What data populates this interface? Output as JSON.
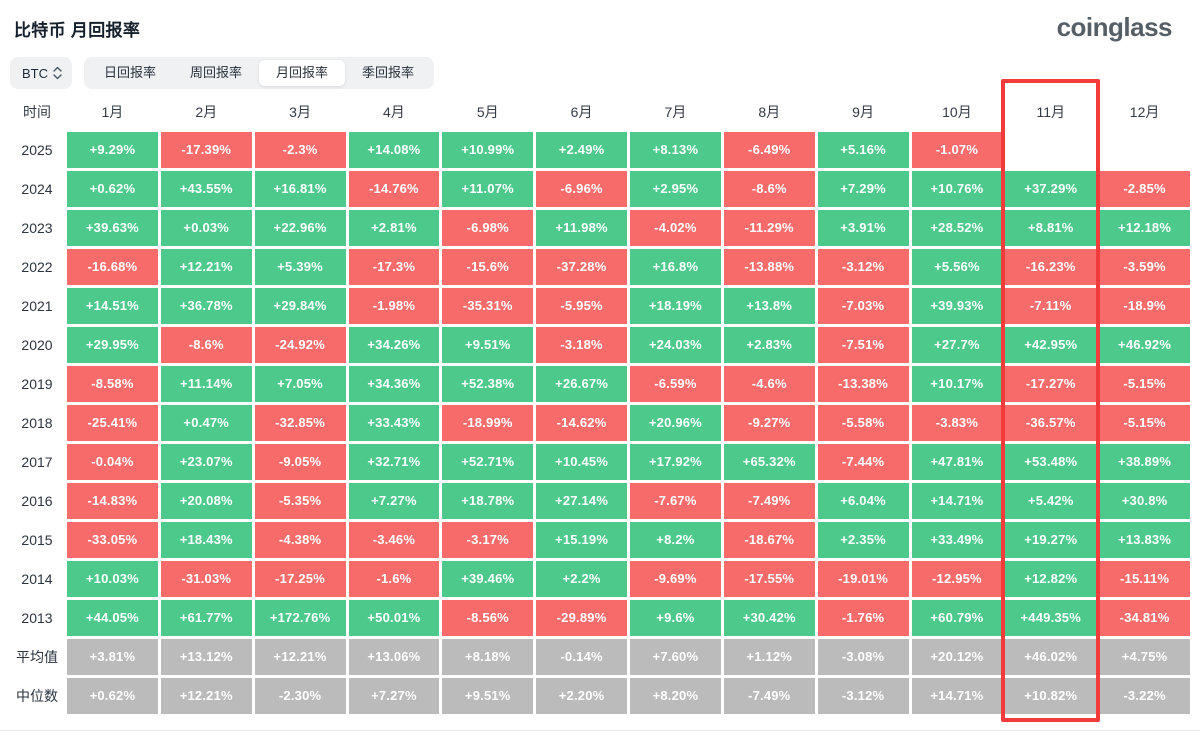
{
  "title": "比特币 月回报率",
  "logo": "coinglass",
  "controls": {
    "coin_selector": "BTC",
    "tabs": [
      {
        "label": "日回报率",
        "active": false
      },
      {
        "label": "周回报率",
        "active": false
      },
      {
        "label": "月回报率",
        "active": true
      },
      {
        "label": "季回报率",
        "active": false
      }
    ]
  },
  "colors": {
    "positive": "#4DC98C",
    "negative": "#F76C6B",
    "summary": "#BBBBBB",
    "highlight_border": "#F23B3B"
  },
  "chart_data": {
    "type": "heatmap",
    "title": "比特币 月回报率",
    "time_header": "时间",
    "columns": [
      "1月",
      "2月",
      "3月",
      "4月",
      "5月",
      "6月",
      "7月",
      "8月",
      "9月",
      "10月",
      "11月",
      "12月"
    ],
    "highlight_column": "11月",
    "highlight_column_index": 10,
    "rows": [
      {
        "label": "2025",
        "kind": "year",
        "values": [
          "+9.29%",
          "-17.39%",
          "-2.3%",
          "+14.08%",
          "+10.99%",
          "+2.49%",
          "+8.13%",
          "-6.49%",
          "+5.16%",
          "-1.07%",
          "",
          ""
        ]
      },
      {
        "label": "2024",
        "kind": "year",
        "values": [
          "+0.62%",
          "+43.55%",
          "+16.81%",
          "-14.76%",
          "+11.07%",
          "-6.96%",
          "+2.95%",
          "-8.6%",
          "+7.29%",
          "+10.76%",
          "+37.29%",
          "-2.85%"
        ]
      },
      {
        "label": "2023",
        "kind": "year",
        "values": [
          "+39.63%",
          "+0.03%",
          "+22.96%",
          "+2.81%",
          "-6.98%",
          "+11.98%",
          "-4.02%",
          "-11.29%",
          "+3.91%",
          "+28.52%",
          "+8.81%",
          "+12.18%"
        ]
      },
      {
        "label": "2022",
        "kind": "year",
        "values": [
          "-16.68%",
          "+12.21%",
          "+5.39%",
          "-17.3%",
          "-15.6%",
          "-37.28%",
          "+16.8%",
          "-13.88%",
          "-3.12%",
          "+5.56%",
          "-16.23%",
          "-3.59%"
        ]
      },
      {
        "label": "2021",
        "kind": "year",
        "values": [
          "+14.51%",
          "+36.78%",
          "+29.84%",
          "-1.98%",
          "-35.31%",
          "-5.95%",
          "+18.19%",
          "+13.8%",
          "-7.03%",
          "+39.93%",
          "-7.11%",
          "-18.9%"
        ]
      },
      {
        "label": "2020",
        "kind": "year",
        "values": [
          "+29.95%",
          "-8.6%",
          "-24.92%",
          "+34.26%",
          "+9.51%",
          "-3.18%",
          "+24.03%",
          "+2.83%",
          "-7.51%",
          "+27.7%",
          "+42.95%",
          "+46.92%"
        ]
      },
      {
        "label": "2019",
        "kind": "year",
        "values": [
          "-8.58%",
          "+11.14%",
          "+7.05%",
          "+34.36%",
          "+52.38%",
          "+26.67%",
          "-6.59%",
          "-4.6%",
          "-13.38%",
          "+10.17%",
          "-17.27%",
          "-5.15%"
        ]
      },
      {
        "label": "2018",
        "kind": "year",
        "values": [
          "-25.41%",
          "+0.47%",
          "-32.85%",
          "+33.43%",
          "-18.99%",
          "-14.62%",
          "+20.96%",
          "-9.27%",
          "-5.58%",
          "-3.83%",
          "-36.57%",
          "-5.15%"
        ]
      },
      {
        "label": "2017",
        "kind": "year",
        "values": [
          "-0.04%",
          "+23.07%",
          "-9.05%",
          "+32.71%",
          "+52.71%",
          "+10.45%",
          "+17.92%",
          "+65.32%",
          "-7.44%",
          "+47.81%",
          "+53.48%",
          "+38.89%"
        ]
      },
      {
        "label": "2016",
        "kind": "year",
        "values": [
          "-14.83%",
          "+20.08%",
          "-5.35%",
          "+7.27%",
          "+18.78%",
          "+27.14%",
          "-7.67%",
          "-7.49%",
          "+6.04%",
          "+14.71%",
          "+5.42%",
          "+30.8%"
        ]
      },
      {
        "label": "2015",
        "kind": "year",
        "values": [
          "-33.05%",
          "+18.43%",
          "-4.38%",
          "-3.46%",
          "-3.17%",
          "+15.19%",
          "+8.2%",
          "-18.67%",
          "+2.35%",
          "+33.49%",
          "+19.27%",
          "+13.83%"
        ]
      },
      {
        "label": "2014",
        "kind": "year",
        "values": [
          "+10.03%",
          "-31.03%",
          "-17.25%",
          "-1.6%",
          "+39.46%",
          "+2.2%",
          "-9.69%",
          "-17.55%",
          "-19.01%",
          "-12.95%",
          "+12.82%",
          "-15.11%"
        ]
      },
      {
        "label": "2013",
        "kind": "year",
        "values": [
          "+44.05%",
          "+61.77%",
          "+172.76%",
          "+50.01%",
          "-8.56%",
          "-29.89%",
          "+9.6%",
          "+30.42%",
          "-1.76%",
          "+60.79%",
          "+449.35%",
          "-34.81%"
        ]
      },
      {
        "label": "平均值",
        "kind": "summary",
        "values": [
          "+3.81%",
          "+13.12%",
          "+12.21%",
          "+13.06%",
          "+8.18%",
          "-0.14%",
          "+7.60%",
          "+1.12%",
          "-3.08%",
          "+20.12%",
          "+46.02%",
          "+4.75%"
        ]
      },
      {
        "label": "中位数",
        "kind": "summary",
        "values": [
          "+0.62%",
          "+12.21%",
          "-2.30%",
          "+7.27%",
          "+9.51%",
          "+2.20%",
          "+8.20%",
          "-7.49%",
          "-3.12%",
          "+14.71%",
          "+10.82%",
          "-3.22%"
        ]
      }
    ]
  }
}
